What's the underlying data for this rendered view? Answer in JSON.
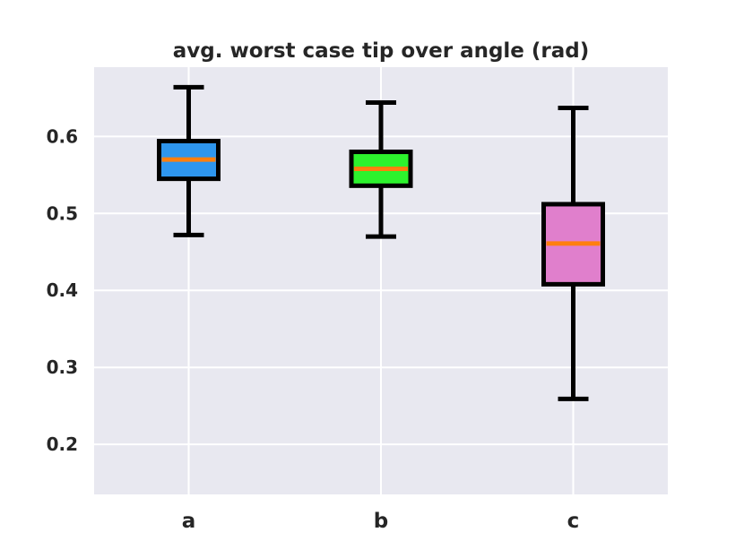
{
  "chart_data": {
    "type": "boxplot",
    "title": "avg. worst case tip over angle (rad)",
    "xlabel": "",
    "ylabel": "",
    "categories": [
      "a",
      "b",
      "c"
    ],
    "ylim": [
      0.135,
      0.69
    ],
    "yticks": [
      0.2,
      0.3,
      0.4,
      0.5,
      0.6
    ],
    "ytick_labels": [
      "0.2",
      "0.3",
      "0.4",
      "0.5",
      "0.6"
    ],
    "grid": true,
    "background_color": "#e8e8f0",
    "grid_color": "#ffffff",
    "median_color": "#ff7f0e",
    "box_edge_color": "#000000",
    "boxes": [
      {
        "label": "a",
        "whisker_low": 0.472,
        "q1": 0.545,
        "median": 0.57,
        "q3": 0.594,
        "whisker_high": 0.664,
        "color": "#2e96ee"
      },
      {
        "label": "b",
        "whisker_low": 0.47,
        "q1": 0.536,
        "median": 0.558,
        "q3": 0.58,
        "whisker_high": 0.644,
        "color": "#2df22d"
      },
      {
        "label": "c",
        "whisker_low": 0.259,
        "q1": 0.408,
        "median": 0.461,
        "q3": 0.512,
        "whisker_high": 0.637,
        "color": "#e07fcc"
      }
    ]
  }
}
